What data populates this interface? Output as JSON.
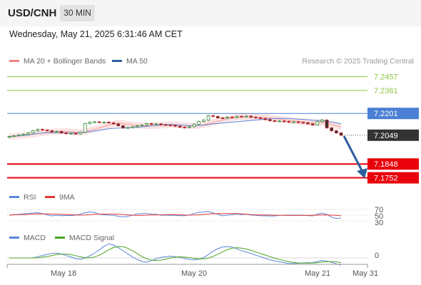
{
  "header": {
    "symbol": "USD/CNH",
    "timeframe": "30 MIN"
  },
  "datetime": "Wednesday, May 21, 2025 6:31:46 AM CET",
  "legend": {
    "ma20_label": "MA 20 + Bollinger Bands",
    "ma50_label": "MA 50",
    "credit": "Research © 2025 Trading Central"
  },
  "colors": {
    "green_level": "#8cc63f",
    "blue_level": "#4a7fd4",
    "red_level": "#e8000b",
    "current_price_bg": "#333333",
    "arrow": "#2e5f9e",
    "candle_up": "#3a8a3a",
    "candle_down": "#c0282d",
    "rsi": "#5b86d9",
    "ma9": "#e53935",
    "macd": "#5b86d9",
    "macd_signal": "#4aa31f"
  },
  "price_levels": [
    {
      "label": "7.2457",
      "value": 7.2457,
      "kind": "resistance-green"
    },
    {
      "label": "7.2361",
      "value": 7.2361,
      "kind": "resistance-green"
    },
    {
      "label": "7.2201",
      "value": 7.2201,
      "kind": "pivot-blue"
    },
    {
      "label": "7.2049",
      "value": 7.2049,
      "kind": "current-price"
    },
    {
      "label": "7.1848",
      "value": 7.1848,
      "kind": "support-red"
    },
    {
      "label": "7.1752",
      "value": 7.1752,
      "kind": "support-red"
    }
  ],
  "rsi_panel": {
    "rsi_label": "RSI",
    "ma9_label": "9MA",
    "levels": [
      "70",
      "50",
      "30"
    ]
  },
  "macd_panel": {
    "macd_label": "MACD",
    "signal_label": "MACD Signal",
    "zero_label": "0"
  },
  "x_axis": {
    "ticks": [
      "May 18",
      "May 20",
      "May 21",
      "May 31"
    ]
  },
  "chart_data": {
    "type": "candlestick",
    "price_range": [
      7.17,
      7.252
    ],
    "close_series": [
      7.204,
      7.2045,
      7.205,
      7.2055,
      7.2065,
      7.208,
      7.209,
      7.2085,
      7.208,
      7.2072,
      7.2075,
      7.2065,
      7.206,
      7.2062,
      7.2058,
      7.207,
      7.213,
      7.214,
      7.2142,
      7.2138,
      7.214,
      7.2135,
      7.2128,
      7.2115,
      7.21,
      7.2102,
      7.2108,
      7.2115,
      7.212,
      7.213,
      7.2125,
      7.2128,
      7.2122,
      7.212,
      7.2118,
      7.2112,
      7.2105,
      7.2103,
      7.2108,
      7.2125,
      7.2145,
      7.2155,
      7.2185,
      7.218,
      7.217,
      7.2168,
      7.2175,
      7.2172,
      7.218,
      7.2178,
      7.2182,
      7.2175,
      7.217,
      7.2165,
      7.2158,
      7.215,
      7.2145,
      7.2148,
      7.2145,
      7.214,
      7.2142,
      7.2138,
      7.2135,
      7.2128,
      7.212,
      7.2145,
      7.2155,
      7.21,
      7.208,
      7.2065,
      7.2049
    ]
  }
}
